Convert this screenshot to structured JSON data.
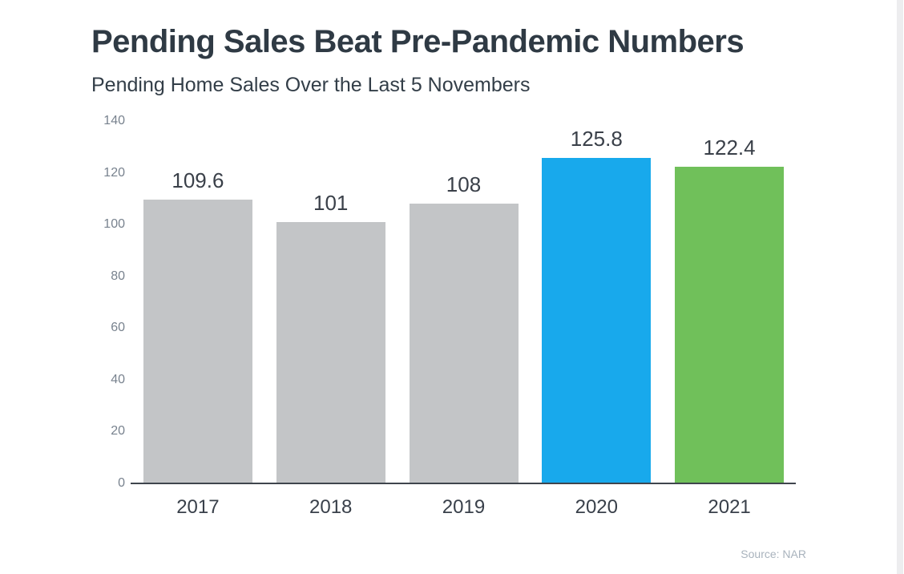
{
  "header": {
    "title": "Pending Sales Beat Pre-Pandemic Numbers",
    "subtitle": "Pending Home Sales Over the Last 5 Novembers"
  },
  "chart_data": {
    "type": "bar",
    "categories": [
      "2017",
      "2018",
      "2019",
      "2020",
      "2021"
    ],
    "values": [
      109.6,
      101,
      108,
      125.8,
      122.4
    ],
    "value_labels": [
      "109.6",
      "101",
      "108",
      "125.8",
      "122.4"
    ],
    "bar_colors": [
      "#c3c5c7",
      "#c3c5c7",
      "#c3c5c7",
      "#18a9ec",
      "#70c05a"
    ],
    "title": "Pending Sales Beat Pre-Pandemic Numbers",
    "subtitle": "Pending Home Sales Over the Last 5 Novembers",
    "xlabel": "",
    "ylabel": "",
    "ylim": [
      0,
      140
    ],
    "yticks": [
      0,
      20,
      40,
      60,
      80,
      100,
      120,
      140
    ],
    "grid": false,
    "legend_position": "none"
  },
  "footer": {
    "source": "Source: NAR"
  },
  "colors": {
    "title_text": "#2f3a44",
    "subtitle_text": "#333e48",
    "axis_tick_text": "#78828e",
    "bar_value_text": "#3a4049",
    "x_label_text": "#39404a",
    "axis_line": "#3f454d",
    "source_text": "#a9b3bd",
    "gray_bar": "#c3c5c7",
    "blue_bar": "#18a9ec",
    "green_bar": "#70c05a",
    "scrollbar_track": "#ededef",
    "background": "#ffffff"
  }
}
